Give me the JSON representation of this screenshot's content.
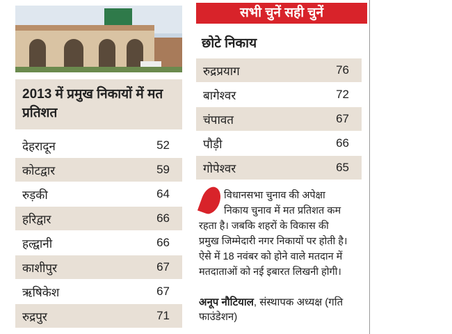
{
  "left_table": {
    "title": "2013 में प्रमुख निकायों में मत प्रतिशत",
    "rows": [
      [
        "देहरादून",
        52
      ],
      [
        "कोटद्वार",
        59
      ],
      [
        "रुड़की",
        64
      ],
      [
        "हरिद्वार",
        66
      ],
      [
        "हल्द्वानी",
        66
      ],
      [
        "काशीपुर",
        67
      ],
      [
        "ऋषिकेश",
        67
      ],
      [
        "रुद्रपुर",
        71
      ]
    ]
  },
  "banner": "सभी चुनें सही चुनें",
  "right_table": {
    "title": "छोटे निकाय",
    "rows": [
      [
        "रुद्रप्रयाग",
        76
      ],
      [
        "बागेश्वर",
        72
      ],
      [
        "चंपावत",
        67
      ],
      [
        "पौड़ी",
        66
      ],
      [
        "गोपेश्वर",
        65
      ]
    ]
  },
  "quote": {
    "lines": [
      "विधानसभा चुनाव की अपेक्षा",
      "निकाय चुनाव में मत प्रतिशत कम",
      "रहता है। जबकि शहरों के विकास की",
      "प्रमुख जिम्मेदारी नगर निकायों पर होती है।",
      "ऐसे में 18 नवंबर को होने वाले मतदान में",
      "मतदाताओं को नई इबारत लिखनी होगी।"
    ],
    "author": "अनूप नौटियाल",
    "role": ", संस्थापक अध्यक्ष (गति फाउंडेशन)"
  }
}
